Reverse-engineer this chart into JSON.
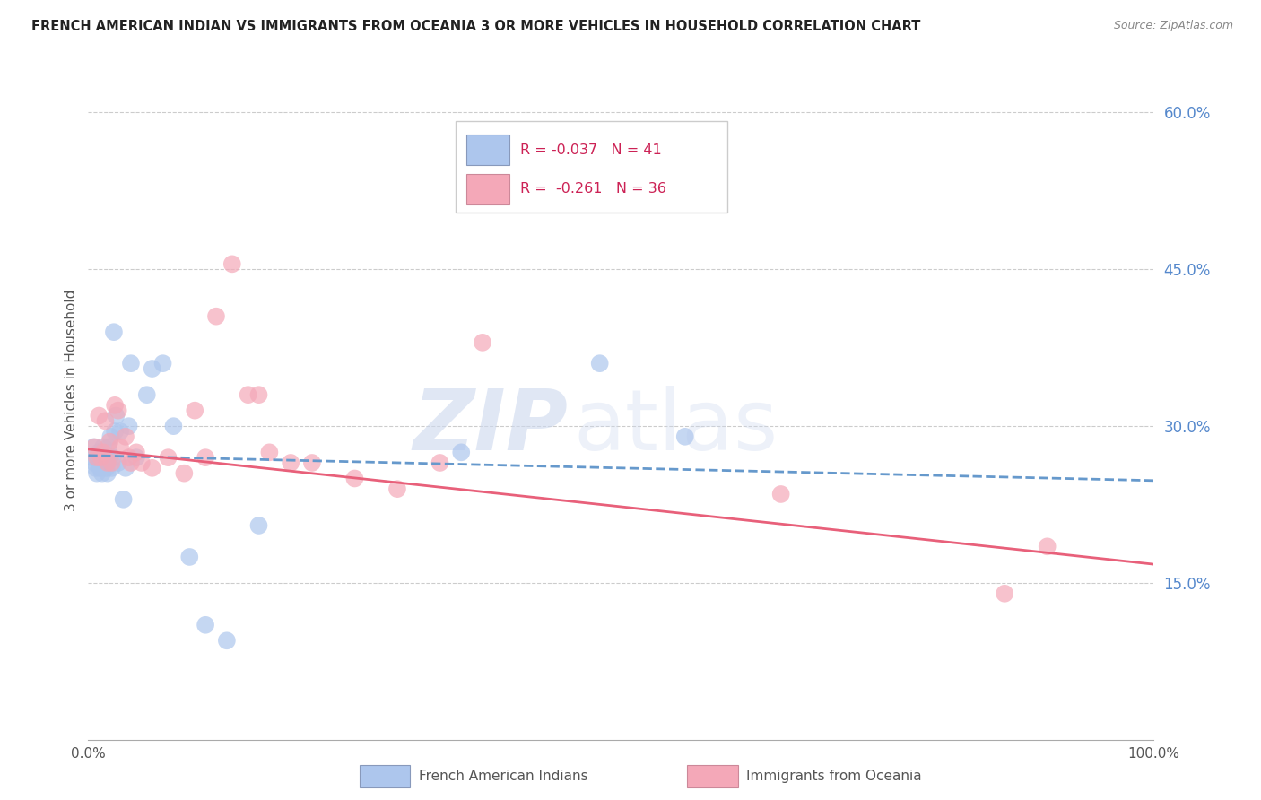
{
  "title": "FRENCH AMERICAN INDIAN VS IMMIGRANTS FROM OCEANIA 3 OR MORE VEHICLES IN HOUSEHOLD CORRELATION CHART",
  "source": "Source: ZipAtlas.com",
  "ylabel": "3 or more Vehicles in Household",
  "xlim": [
    0.0,
    1.0
  ],
  "ylim": [
    0.0,
    0.65
  ],
  "yticks": [
    0.15,
    0.3,
    0.45,
    0.6
  ],
  "xticks": [
    0.0,
    0.2,
    0.4,
    0.6,
    0.8,
    1.0
  ],
  "ytick_labels": [
    "15.0%",
    "30.0%",
    "45.0%",
    "60.0%"
  ],
  "legend1_r": "-0.037",
  "legend1_n": "41",
  "legend2_r": "-0.261",
  "legend2_n": "36",
  "blue_color": "#adc6ed",
  "pink_color": "#f4a8b8",
  "trend_blue_color": "#6699cc",
  "trend_pink_color": "#e8607a",
  "blue_trend_x": [
    0.0,
    1.0
  ],
  "blue_trend_y": [
    0.272,
    0.248
  ],
  "pink_trend_x": [
    0.0,
    1.0
  ],
  "pink_trend_y": [
    0.278,
    0.168
  ],
  "blue_points_x": [
    0.004,
    0.005,
    0.006,
    0.007,
    0.008,
    0.009,
    0.01,
    0.011,
    0.012,
    0.013,
    0.014,
    0.015,
    0.016,
    0.017,
    0.018,
    0.019,
    0.02,
    0.021,
    0.022,
    0.023,
    0.024,
    0.025,
    0.026,
    0.028,
    0.03,
    0.033,
    0.035,
    0.038,
    0.04,
    0.045,
    0.055,
    0.06,
    0.07,
    0.08,
    0.095,
    0.11,
    0.13,
    0.16,
    0.35,
    0.48,
    0.56
  ],
  "blue_points_y": [
    0.27,
    0.28,
    0.265,
    0.26,
    0.255,
    0.27,
    0.275,
    0.26,
    0.265,
    0.255,
    0.28,
    0.27,
    0.265,
    0.26,
    0.255,
    0.28,
    0.27,
    0.29,
    0.26,
    0.27,
    0.39,
    0.295,
    0.31,
    0.265,
    0.295,
    0.23,
    0.26,
    0.3,
    0.36,
    0.27,
    0.33,
    0.355,
    0.36,
    0.3,
    0.175,
    0.11,
    0.095,
    0.205,
    0.275,
    0.36,
    0.29
  ],
  "pink_points_x": [
    0.006,
    0.008,
    0.01,
    0.012,
    0.014,
    0.016,
    0.018,
    0.02,
    0.022,
    0.025,
    0.028,
    0.03,
    0.035,
    0.038,
    0.04,
    0.045,
    0.05,
    0.06,
    0.075,
    0.09,
    0.1,
    0.11,
    0.12,
    0.135,
    0.15,
    0.16,
    0.17,
    0.19,
    0.21,
    0.25,
    0.29,
    0.33,
    0.37,
    0.65,
    0.86,
    0.9
  ],
  "pink_points_y": [
    0.28,
    0.27,
    0.31,
    0.27,
    0.275,
    0.305,
    0.265,
    0.285,
    0.265,
    0.32,
    0.315,
    0.28,
    0.29,
    0.27,
    0.265,
    0.275,
    0.265,
    0.26,
    0.27,
    0.255,
    0.315,
    0.27,
    0.405,
    0.455,
    0.33,
    0.33,
    0.275,
    0.265,
    0.265,
    0.25,
    0.24,
    0.265,
    0.38,
    0.235,
    0.14,
    0.185
  ]
}
